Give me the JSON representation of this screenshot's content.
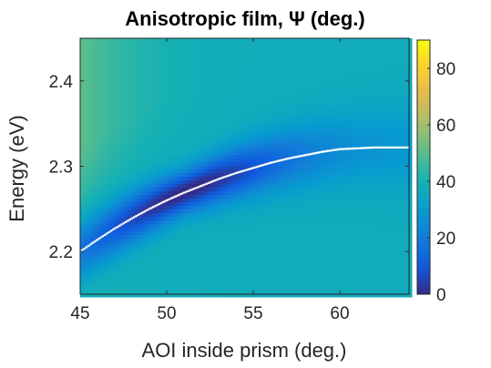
{
  "chart_data": {
    "type": "heatmap",
    "title": "Anisotropic film, Ψ (deg.)",
    "xlabel": "AOI inside prism (deg.)",
    "ylabel": "Energy (eV)",
    "xlim": [
      45,
      64
    ],
    "ylim": [
      2.15,
      2.45
    ],
    "xticks": [
      45,
      50,
      55,
      60
    ],
    "xtick_labels": [
      "45",
      "50",
      "55",
      "60"
    ],
    "yticks": [
      2.2,
      2.3,
      2.4
    ],
    "ytick_labels": [
      "2.2",
      "2.3",
      "2.4"
    ],
    "colormap": "parula",
    "clim": [
      0,
      90
    ],
    "colorbar_ticks": [
      0,
      20,
      40,
      60,
      80
    ],
    "colorbar_tick_labels": [
      "0",
      "20",
      "40",
      "60",
      "80"
    ],
    "grid": false,
    "resonance_curve": {
      "style": "white-dotted",
      "x": [
        45,
        46,
        47,
        48,
        49,
        50,
        51,
        52,
        53,
        54,
        55,
        56,
        57,
        58,
        59,
        60,
        61,
        62,
        63,
        64
      ],
      "y": [
        2.2,
        2.214,
        2.227,
        2.239,
        2.25,
        2.26,
        2.269,
        2.277,
        2.285,
        2.292,
        2.298,
        2.304,
        2.309,
        2.313,
        2.317,
        2.32,
        2.321,
        2.322,
        2.322,
        2.322
      ]
    },
    "psi_minimum": {
      "x": 51,
      "y": 2.27,
      "value": 5
    }
  }
}
